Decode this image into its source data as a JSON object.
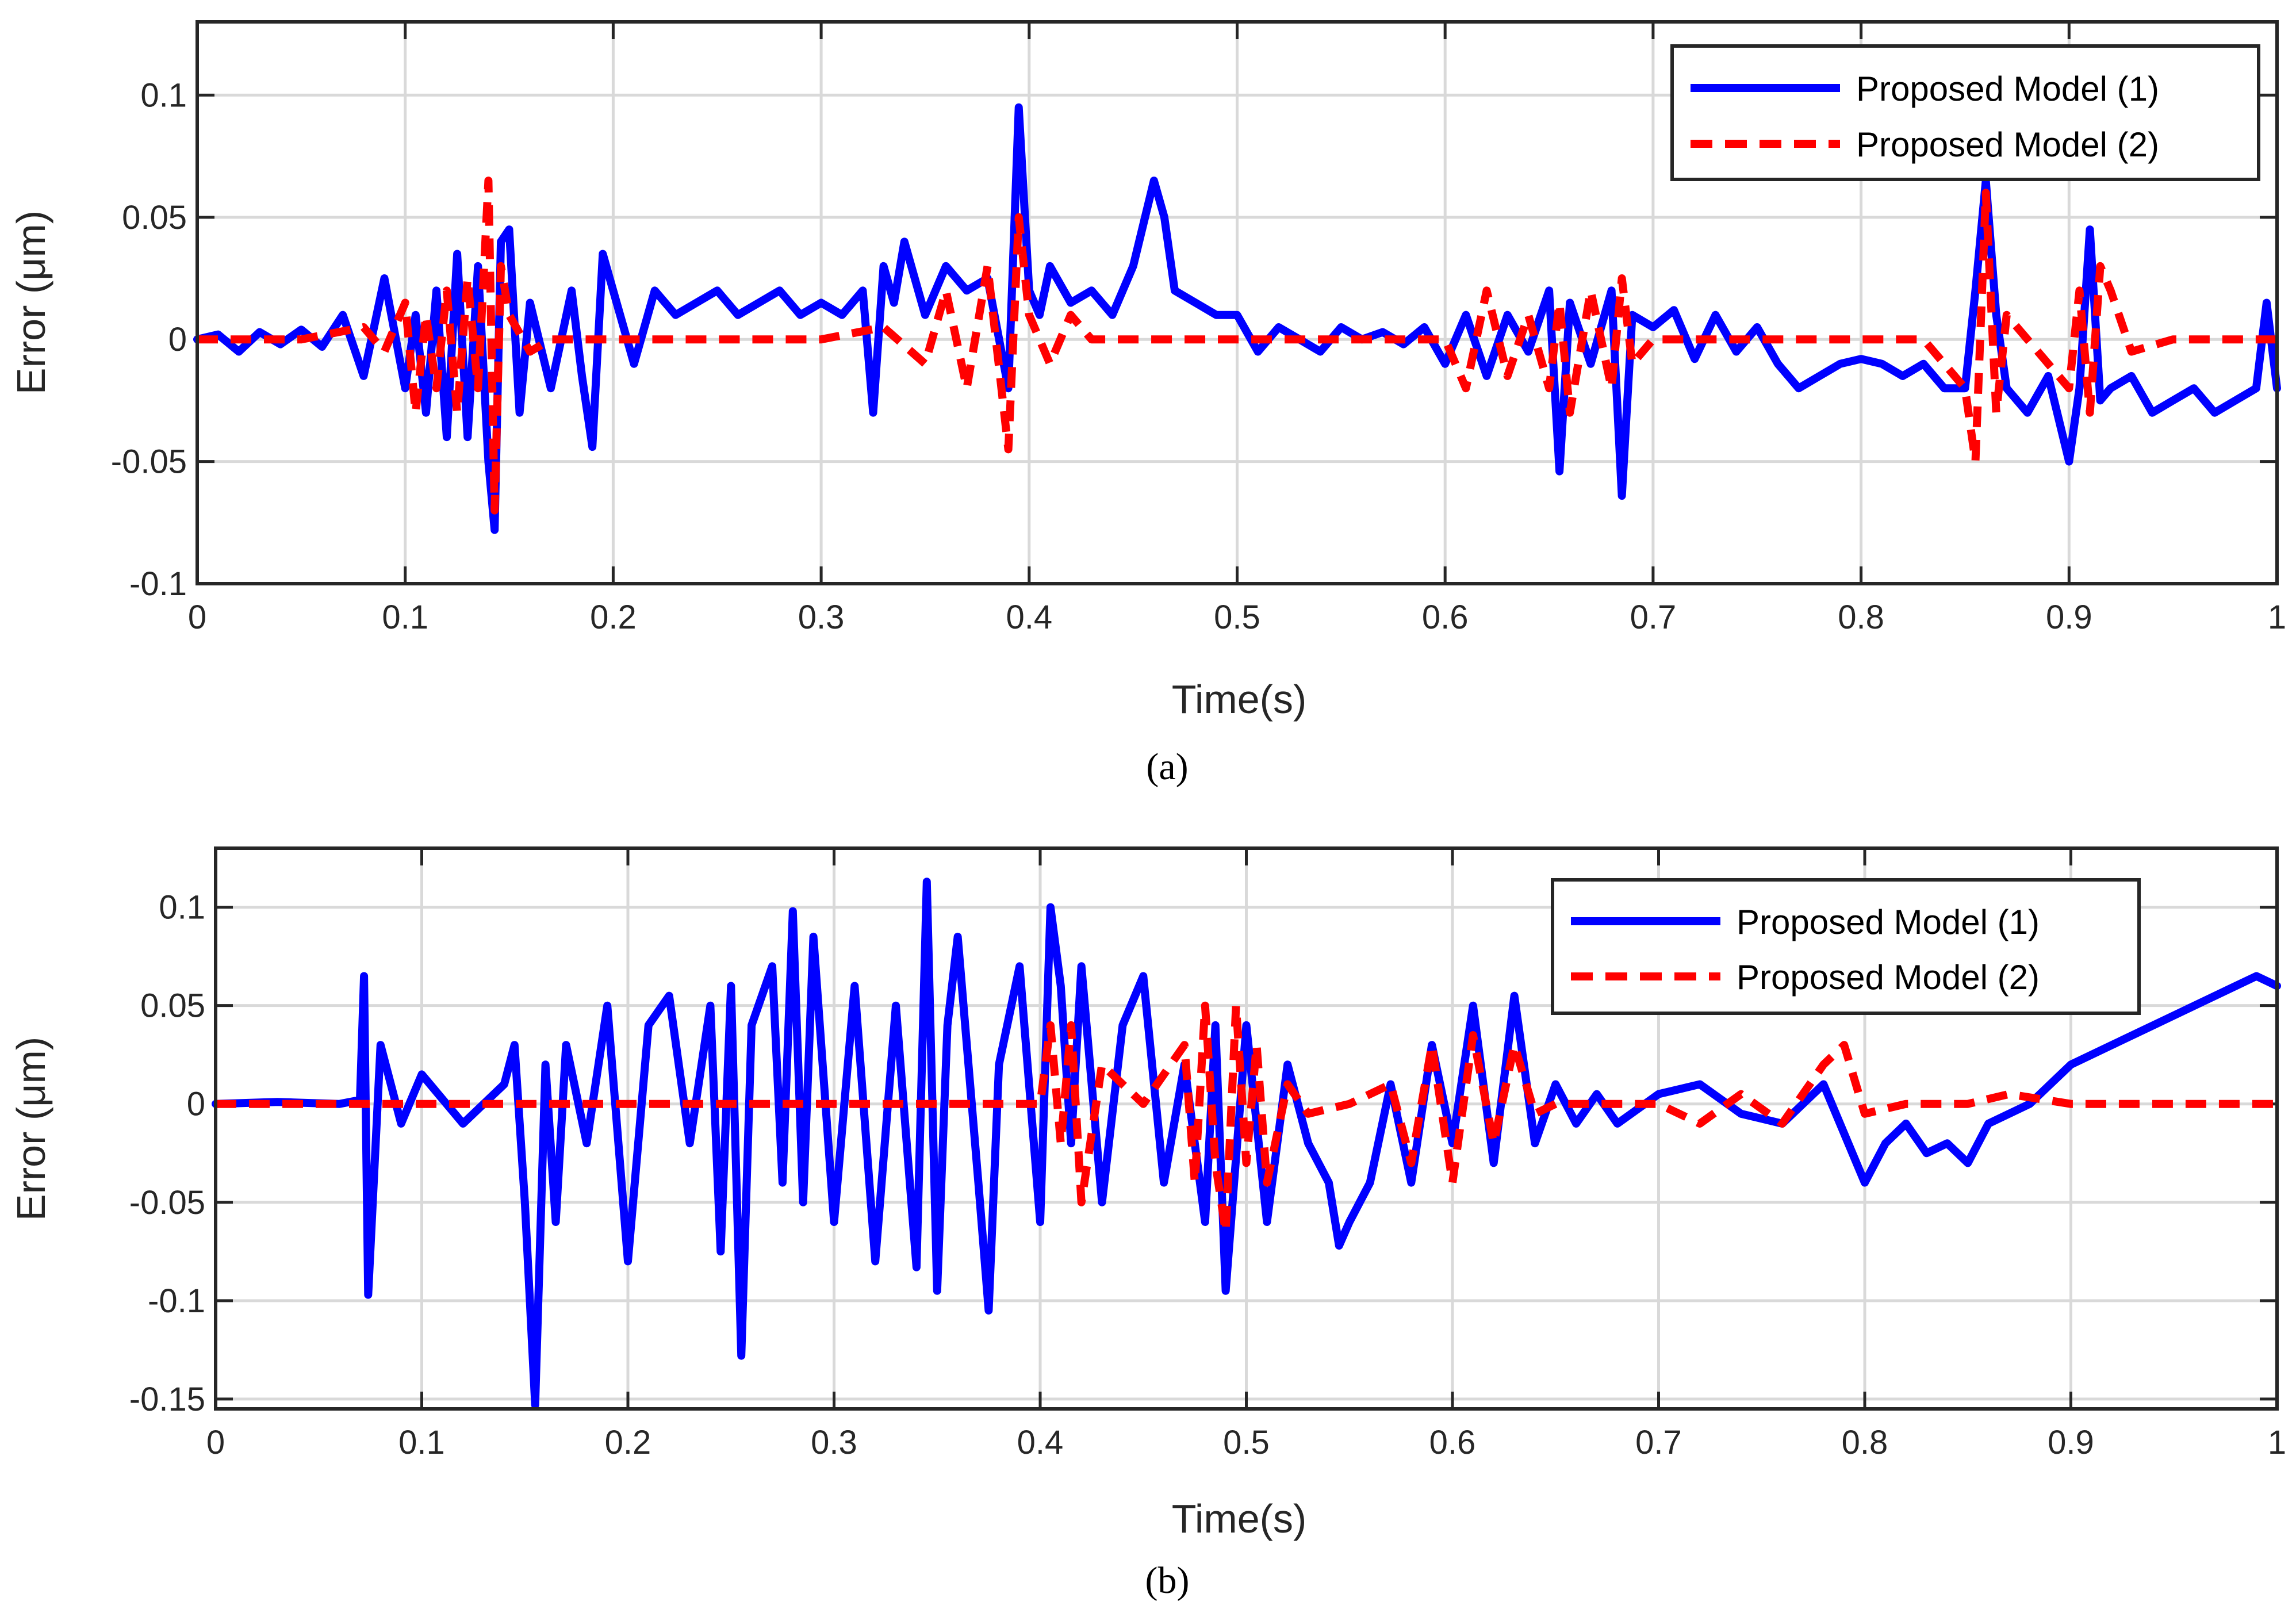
{
  "figure": {
    "panels": [
      "(a)",
      "(b)"
    ],
    "line_colors": {
      "model1": "#0000FF",
      "model2": "#FF0000"
    }
  },
  "chart_data": [
    {
      "type": "line",
      "panel_label": "(a)",
      "xlabel": "Time(s)",
      "ylabel": "Error (μm)",
      "xlim": [
        0,
        1
      ],
      "ylim": [
        -0.1,
        0.13
      ],
      "xticks": [
        0,
        0.1,
        0.2,
        0.3,
        0.4,
        0.5,
        0.6,
        0.7,
        0.8,
        0.9,
        1
      ],
      "xtick_labels": [
        "0",
        "0.1",
        "0.2",
        "0.3",
        "0.4",
        "0.5",
        "0.6",
        "0.7",
        "0.8",
        "0.9",
        "1"
      ],
      "yticks": [
        -0.1,
        -0.05,
        0,
        0.05,
        0.1
      ],
      "ytick_labels": [
        "-0.1",
        "-0.05",
        "0",
        "0.05",
        "0.1"
      ],
      "grid": true,
      "legend_position": "top-right",
      "series": [
        {
          "name": "Proposed Model (1)",
          "style": "solid",
          "color": "#0000FF",
          "x": [
            0,
            0.01,
            0.02,
            0.03,
            0.04,
            0.05,
            0.06,
            0.07,
            0.08,
            0.09,
            0.1,
            0.105,
            0.11,
            0.115,
            0.12,
            0.125,
            0.13,
            0.135,
            0.14,
            0.143,
            0.146,
            0.15,
            0.155,
            0.16,
            0.17,
            0.18,
            0.185,
            0.19,
            0.195,
            0.2,
            0.21,
            0.22,
            0.23,
            0.24,
            0.25,
            0.26,
            0.27,
            0.28,
            0.29,
            0.3,
            0.31,
            0.32,
            0.325,
            0.33,
            0.335,
            0.34,
            0.35,
            0.36,
            0.37,
            0.38,
            0.39,
            0.395,
            0.4,
            0.405,
            0.41,
            0.42,
            0.43,
            0.44,
            0.45,
            0.46,
            0.465,
            0.47,
            0.48,
            0.49,
            0.5,
            0.51,
            0.52,
            0.53,
            0.54,
            0.55,
            0.56,
            0.57,
            0.58,
            0.59,
            0.6,
            0.61,
            0.62,
            0.63,
            0.64,
            0.65,
            0.655,
            0.66,
            0.67,
            0.68,
            0.685,
            0.69,
            0.7,
            0.71,
            0.72,
            0.73,
            0.74,
            0.75,
            0.76,
            0.77,
            0.78,
            0.79,
            0.8,
            0.81,
            0.82,
            0.83,
            0.84,
            0.85,
            0.855,
            0.86,
            0.865,
            0.87,
            0.88,
            0.89,
            0.9,
            0.905,
            0.91,
            0.915,
            0.92,
            0.93,
            0.94,
            0.95,
            0.96,
            0.97,
            0.98,
            0.99,
            0.995,
            1
          ],
          "y": [
            0,
            0.002,
            -0.005,
            0.003,
            -0.002,
            0.004,
            -0.003,
            0.01,
            -0.015,
            0.025,
            -0.02,
            0.01,
            -0.03,
            0.02,
            -0.04,
            0.035,
            -0.04,
            0.03,
            -0.05,
            -0.078,
            0.04,
            0.045,
            -0.03,
            0.015,
            -0.02,
            0.02,
            -0.015,
            -0.044,
            0.035,
            0.02,
            -0.01,
            0.02,
            0.01,
            0.015,
            0.02,
            0.01,
            0.015,
            0.02,
            0.01,
            0.015,
            0.01,
            0.02,
            -0.03,
            0.03,
            0.015,
            0.04,
            0.01,
            0.03,
            0.02,
            0.025,
            -0.02,
            0.095,
            0.02,
            0.01,
            0.03,
            0.015,
            0.02,
            0.01,
            0.03,
            0.065,
            0.05,
            0.02,
            0.015,
            0.01,
            0.01,
            -0.005,
            0.005,
            0,
            -0.005,
            0.005,
            0,
            0.003,
            -0.002,
            0.005,
            -0.01,
            0.01,
            -0.015,
            0.01,
            -0.005,
            0.02,
            -0.054,
            0.015,
            -0.01,
            0.02,
            -0.064,
            0.01,
            0.005,
            0.012,
            -0.008,
            0.01,
            -0.005,
            0.005,
            -0.01,
            -0.02,
            -0.015,
            -0.01,
            -0.008,
            -0.01,
            -0.015,
            -0.01,
            -0.02,
            -0.02,
            0.02,
            0.065,
            0.01,
            -0.02,
            -0.03,
            -0.015,
            -0.05,
            -0.02,
            0.045,
            -0.025,
            -0.02,
            -0.015,
            -0.03,
            -0.025,
            -0.02,
            -0.03,
            -0.025,
            -0.02,
            0.015,
            -0.02
          ]
        },
        {
          "name": "Proposed Model (2)",
          "style": "dashed",
          "color": "#FF0000",
          "x": [
            0,
            0.05,
            0.08,
            0.09,
            0.1,
            0.105,
            0.11,
            0.115,
            0.12,
            0.125,
            0.13,
            0.135,
            0.14,
            0.143,
            0.146,
            0.15,
            0.16,
            0.17,
            0.2,
            0.3,
            0.33,
            0.35,
            0.36,
            0.37,
            0.38,
            0.39,
            0.395,
            0.4,
            0.41,
            0.42,
            0.43,
            0.45,
            0.5,
            0.6,
            0.61,
            0.62,
            0.63,
            0.64,
            0.65,
            0.655,
            0.66,
            0.67,
            0.68,
            0.685,
            0.69,
            0.7,
            0.75,
            0.8,
            0.83,
            0.85,
            0.855,
            0.86,
            0.865,
            0.87,
            0.88,
            0.9,
            0.905,
            0.91,
            0.915,
            0.92,
            0.93,
            0.95,
            1
          ],
          "y": [
            0,
            0,
            0.005,
            -0.005,
            0.015,
            -0.03,
            0.01,
            -0.02,
            0.02,
            -0.03,
            0.025,
            -0.02,
            0.065,
            -0.07,
            0.03,
            0.01,
            -0.005,
            0,
            0,
            0,
            0.005,
            -0.01,
            0.02,
            -0.02,
            0.03,
            -0.045,
            0.05,
            0.01,
            -0.01,
            0.01,
            0,
            0,
            0,
            0,
            -0.02,
            0.02,
            -0.015,
            0.01,
            -0.02,
            0.015,
            -0.03,
            0.02,
            -0.02,
            0.025,
            -0.01,
            0,
            0,
            0,
            0,
            -0.02,
            -0.05,
            0.06,
            -0.03,
            0.01,
            0,
            -0.02,
            0.02,
            -0.03,
            0.03,
            0.02,
            -0.005,
            0,
            0
          ]
        }
      ]
    },
    {
      "type": "line",
      "panel_label": "(b)",
      "xlabel": "Time(s)",
      "ylabel": "Error (μm)",
      "xlim": [
        0,
        1
      ],
      "ylim": [
        -0.155,
        0.13
      ],
      "xticks": [
        0,
        0.1,
        0.2,
        0.3,
        0.4,
        0.5,
        0.6,
        0.7,
        0.8,
        0.9,
        1
      ],
      "xtick_labels": [
        "0",
        "0.1",
        "0.2",
        "0.3",
        "0.4",
        "0.5",
        "0.6",
        "0.7",
        "0.8",
        "0.9",
        "1"
      ],
      "yticks": [
        -0.15,
        -0.1,
        -0.05,
        0,
        0.05,
        0.1
      ],
      "ytick_labels": [
        "-0.15",
        "-0.1",
        "-0.05",
        "0",
        "0.05",
        "0.1"
      ],
      "grid": true,
      "legend_position": "top-right",
      "series": [
        {
          "name": "Proposed Model (1)",
          "style": "solid",
          "color": "#0000FF",
          "x": [
            0,
            0.03,
            0.06,
            0.07,
            0.072,
            0.074,
            0.08,
            0.09,
            0.1,
            0.12,
            0.14,
            0.145,
            0.15,
            0.155,
            0.16,
            0.165,
            0.17,
            0.18,
            0.19,
            0.2,
            0.21,
            0.22,
            0.23,
            0.24,
            0.245,
            0.25,
            0.255,
            0.26,
            0.27,
            0.275,
            0.28,
            0.285,
            0.29,
            0.3,
            0.31,
            0.32,
            0.33,
            0.34,
            0.345,
            0.35,
            0.355,
            0.36,
            0.37,
            0.375,
            0.38,
            0.39,
            0.4,
            0.405,
            0.41,
            0.415,
            0.42,
            0.43,
            0.44,
            0.45,
            0.46,
            0.47,
            0.48,
            0.485,
            0.49,
            0.5,
            0.51,
            0.52,
            0.53,
            0.54,
            0.545,
            0.55,
            0.56,
            0.57,
            0.58,
            0.59,
            0.6,
            0.61,
            0.62,
            0.63,
            0.64,
            0.65,
            0.66,
            0.67,
            0.68,
            0.7,
            0.72,
            0.74,
            0.76,
            0.78,
            0.8,
            0.81,
            0.82,
            0.83,
            0.84,
            0.85,
            0.86,
            0.88,
            0.9,
            0.92,
            0.94,
            0.96,
            0.98,
            0.99,
            1
          ],
          "y": [
            0,
            0.001,
            0,
            0.002,
            0.065,
            -0.097,
            0.03,
            -0.01,
            0.015,
            -0.01,
            0.01,
            0.03,
            -0.05,
            -0.153,
            0.02,
            -0.06,
            0.03,
            -0.02,
            0.05,
            -0.08,
            0.04,
            0.055,
            -0.02,
            0.05,
            -0.075,
            0.06,
            -0.128,
            0.04,
            0.07,
            -0.04,
            0.098,
            -0.05,
            0.085,
            -0.06,
            0.06,
            -0.08,
            0.05,
            -0.083,
            0.113,
            -0.095,
            0.04,
            0.085,
            -0.04,
            -0.105,
            0.02,
            0.07,
            -0.06,
            0.1,
            0.06,
            -0.02,
            0.07,
            -0.05,
            0.04,
            0.065,
            -0.04,
            0.02,
            -0.06,
            0.04,
            -0.095,
            0.04,
            -0.06,
            0.02,
            -0.02,
            -0.04,
            -0.072,
            -0.06,
            -0.04,
            0.01,
            -0.04,
            0.03,
            -0.02,
            0.05,
            -0.03,
            0.055,
            -0.02,
            0.01,
            -0.01,
            0.005,
            -0.01,
            0.005,
            0.01,
            -0.005,
            -0.01,
            0.01,
            -0.04,
            -0.02,
            -0.01,
            -0.025,
            -0.02,
            -0.03,
            -0.01,
            0,
            0.02,
            0.03,
            0.04,
            0.05,
            0.06,
            0.065,
            0.06
          ]
        },
        {
          "name": "Proposed Model (2)",
          "style": "dashed",
          "color": "#FF0000",
          "x": [
            0,
            0.1,
            0.2,
            0.3,
            0.4,
            0.405,
            0.41,
            0.415,
            0.42,
            0.43,
            0.45,
            0.47,
            0.475,
            0.48,
            0.485,
            0.49,
            0.495,
            0.5,
            0.505,
            0.51,
            0.52,
            0.53,
            0.55,
            0.57,
            0.58,
            0.59,
            0.6,
            0.61,
            0.62,
            0.63,
            0.64,
            0.65,
            0.7,
            0.72,
            0.74,
            0.76,
            0.78,
            0.79,
            0.8,
            0.82,
            0.85,
            0.87,
            0.9,
            0.95,
            1
          ],
          "y": [
            0,
            0,
            0,
            0,
            0,
            0.04,
            -0.02,
            0.04,
            -0.05,
            0.02,
            0,
            0.03,
            -0.04,
            0.05,
            -0.03,
            -0.065,
            0.05,
            -0.03,
            0.03,
            -0.04,
            0.01,
            -0.005,
            0,
            0.01,
            -0.03,
            0.03,
            -0.04,
            0.035,
            -0.02,
            0.03,
            -0.005,
            0,
            0,
            -0.01,
            0.005,
            -0.01,
            0.02,
            0.03,
            -0.005,
            0,
            0,
            0.005,
            0,
            0,
            0
          ]
        }
      ]
    }
  ]
}
